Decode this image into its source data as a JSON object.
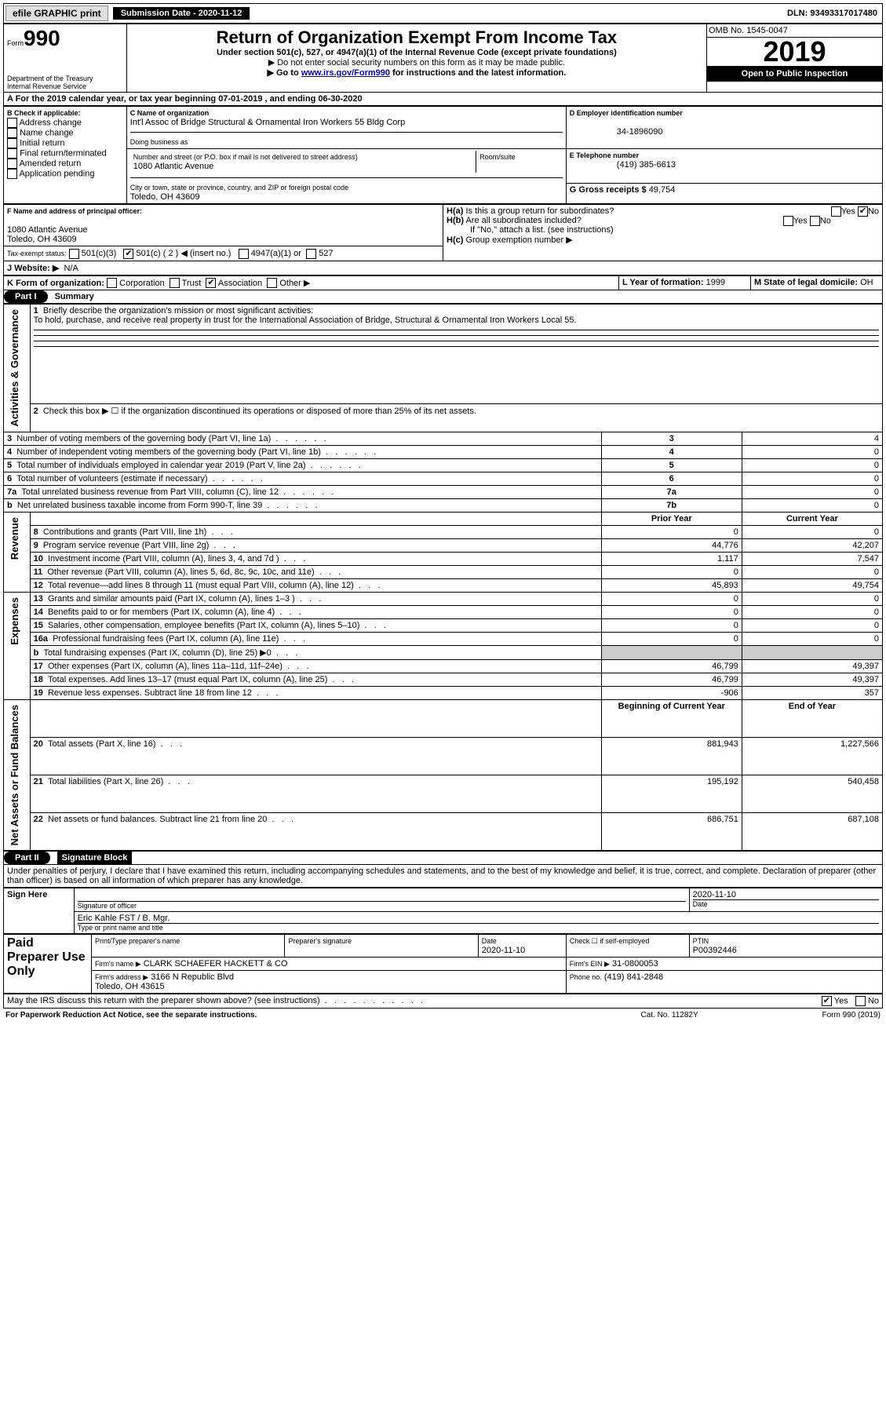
{
  "topbar": {
    "efile": "efile GRAPHIC print",
    "submission": "Submission Date - 2020-11-12",
    "dln": "DLN: 93493317017480"
  },
  "header": {
    "form_label": "Form",
    "form_num": "990",
    "dept": "Department of the Treasury\nInternal Revenue Service",
    "title": "Return of Organization Exempt From Income Tax",
    "sub1": "Under section 501(c), 527, or 4947(a)(1) of the Internal Revenue Code (except private foundations)",
    "sub2": "▶ Do not enter social security numbers on this form as it may be made public.",
    "sub3_pre": "▶ Go to ",
    "sub3_link": "www.irs.gov/Form990",
    "sub3_post": " for instructions and the latest information.",
    "omb": "OMB No. 1545-0047",
    "year": "2019",
    "open": "Open to Public Inspection"
  },
  "lineA": "A For the 2019 calendar year, or tax year beginning 07-01-2019     , and ending 06-30-2020",
  "boxB": {
    "label": "B Check if applicable:",
    "opts": [
      "Address change",
      "Name change",
      "Initial return",
      "Final return/terminated",
      "Amended return",
      "Application pending"
    ]
  },
  "boxC": {
    "label": "C Name of organization",
    "name": "Int'l Assoc of Bridge Structural & Ornamental Iron Workers 55 Bldg Corp",
    "dba_label": "Doing business as",
    "addr_label": "Number and street (or P.O. box if mail is not delivered to street address)",
    "room_label": "Room/suite",
    "addr": "1080 Atlantic Avenue",
    "city_label": "City or town, state or province, country, and ZIP or foreign postal code",
    "city": "Toledo, OH  43609"
  },
  "boxD": {
    "label": "D Employer identification number",
    "val": "34-1896090"
  },
  "boxE": {
    "label": "E Telephone number",
    "val": "(419) 385-6613"
  },
  "boxG": {
    "label": "G Gross receipts $",
    "val": "49,754"
  },
  "boxF": {
    "label": "F  Name and address of principal officer:",
    "addr1": "1080 Atlantic Avenue",
    "addr2": "Toledo, OH  43609"
  },
  "boxH": {
    "ha": "Is this a group return for subordinates?",
    "hb": "Are all subordinates included?",
    "hb_note": "If \"No,\" attach a list. (see instructions)",
    "hc": "Group exemption number ▶"
  },
  "taxExempt": {
    "label": "Tax-exempt status:",
    "opts": [
      "501(c)(3)",
      "501(c) ( 2 ) ◀ (insert no.)",
      "4947(a)(1) or",
      "527"
    ]
  },
  "boxJ": {
    "label": "J    Website: ▶",
    "val": "N/A"
  },
  "boxK": {
    "label": "K Form of organization:",
    "opts": [
      "Corporation",
      "Trust",
      "Association",
      "Other ▶"
    ]
  },
  "boxL": {
    "label": "L Year of formation:",
    "val": "1999"
  },
  "boxM": {
    "label": "M State of legal domicile:",
    "val": "OH"
  },
  "partI": {
    "title": "Part I",
    "heading": "Summary",
    "q1_label": "Briefly describe the organization's mission or most significant activities:",
    "q1_val": "To hold, purchase, and receive real property in trust for the International Association of Bridge, Structural & Ornamental Iron Workers Local 55.",
    "q2_label": "Check this box ▶ ☐  if the organization discontinued its operations or disposed of more than 25% of its net assets.",
    "rows_gov": [
      {
        "n": "3",
        "label": "Number of voting members of the governing body (Part VI, line 1a)",
        "col": "3",
        "val": "4"
      },
      {
        "n": "4",
        "label": "Number of independent voting members of the governing body (Part VI, line 1b)",
        "col": "4",
        "val": "0"
      },
      {
        "n": "5",
        "label": "Total number of individuals employed in calendar year 2019 (Part V, line 2a)",
        "col": "5",
        "val": "0"
      },
      {
        "n": "6",
        "label": "Total number of volunteers (estimate if necessary)",
        "col": "6",
        "val": "0"
      },
      {
        "n": "7a",
        "label": "Total unrelated business revenue from Part VIII, column (C), line 12",
        "col": "7a",
        "val": "0"
      },
      {
        "n": "b",
        "label": "Net unrelated business taxable income from Form 990-T, line 39",
        "col": "7b",
        "val": "0"
      }
    ],
    "col_prior": "Prior Year",
    "col_current": "Current Year",
    "rows_rev": [
      {
        "n": "8",
        "label": "Contributions and grants (Part VIII, line 1h)",
        "p": "0",
        "c": "0"
      },
      {
        "n": "9",
        "label": "Program service revenue (Part VIII, line 2g)",
        "p": "44,776",
        "c": "42,207"
      },
      {
        "n": "10",
        "label": "Investment income (Part VIII, column (A), lines 3, 4, and 7d )",
        "p": "1,117",
        "c": "7,547"
      },
      {
        "n": "11",
        "label": "Other revenue (Part VIII, column (A), lines 5, 6d, 8c, 9c, 10c, and 11e)",
        "p": "0",
        "c": "0"
      },
      {
        "n": "12",
        "label": "Total revenue—add lines 8 through 11 (must equal Part VIII, column (A), line 12)",
        "p": "45,893",
        "c": "49,754"
      }
    ],
    "rows_exp": [
      {
        "n": "13",
        "label": "Grants and similar amounts paid (Part IX, column (A), lines 1–3 )",
        "p": "0",
        "c": "0"
      },
      {
        "n": "14",
        "label": "Benefits paid to or for members (Part IX, column (A), line 4)",
        "p": "0",
        "c": "0"
      },
      {
        "n": "15",
        "label": "Salaries, other compensation, employee benefits (Part IX, column (A), lines 5–10)",
        "p": "0",
        "c": "0"
      },
      {
        "n": "16a",
        "label": "Professional fundraising fees (Part IX, column (A), line 11e)",
        "p": "0",
        "c": "0"
      },
      {
        "n": "b",
        "label": "Total fundraising expenses (Part IX, column (D), line 25) ▶0",
        "p": "",
        "c": "",
        "grey": true
      },
      {
        "n": "17",
        "label": "Other expenses (Part IX, column (A), lines 11a–11d, 11f–24e)",
        "p": "46,799",
        "c": "49,397"
      },
      {
        "n": "18",
        "label": "Total expenses. Add lines 13–17 (must equal Part IX, column (A), line 25)",
        "p": "46,799",
        "c": "49,397"
      },
      {
        "n": "19",
        "label": "Revenue less expenses. Subtract line 18 from line 12",
        "p": "-906",
        "c": "357"
      }
    ],
    "col_begin": "Beginning of Current Year",
    "col_end": "End of Year",
    "rows_net": [
      {
        "n": "20",
        "label": "Total assets (Part X, line 16)",
        "p": "881,943",
        "c": "1,227,566"
      },
      {
        "n": "21",
        "label": "Total liabilities (Part X, line 26)",
        "p": "195,192",
        "c": "540,458"
      },
      {
        "n": "22",
        "label": "Net assets or fund balances. Subtract line 21 from line 20",
        "p": "686,751",
        "c": "687,108"
      }
    ]
  },
  "sideLabels": {
    "gov": "Activities & Governance",
    "rev": "Revenue",
    "exp": "Expenses",
    "net": "Net Assets or\nFund Balances"
  },
  "partII": {
    "title": "Part II",
    "heading": "Signature Block",
    "decl": "Under penalties of perjury, I declare that I have examined this return, including accompanying schedules and statements, and to the best of my knowledge and belief, it is true, correct, and complete. Declaration of preparer (other than officer) is based on all information of which preparer has any knowledge.",
    "sign_here": "Sign Here",
    "sig_label": "Signature of officer",
    "date_label": "Date",
    "date_val": "2020-11-10",
    "name_val": "Eric Kahle  FST / B. Mgr.",
    "name_label": "Type or print name and title",
    "paid": "Paid Preparer Use Only",
    "prep_name_label": "Print/Type preparer's name",
    "prep_sig_label": "Preparer's signature",
    "prep_date_label": "Date",
    "prep_date_val": "2020-11-10",
    "check_self": "Check ☐ if self-employed",
    "ptin_label": "PTIN",
    "ptin_val": "P00392446",
    "firm_name_label": "Firm's name    ▶",
    "firm_name_val": "CLARK SCHAEFER HACKETT & CO",
    "firm_ein_label": "Firm's EIN ▶",
    "firm_ein_val": "31-0800053",
    "firm_addr_label": "Firm's address ▶",
    "firm_addr_val": "3166 N Republic Blvd\nToledo, OH  43615",
    "phone_label": "Phone no.",
    "phone_val": "(419) 841-2848",
    "discuss": "May the IRS discuss this return with the preparer shown above? (see instructions)",
    "yes": "Yes",
    "no": "No"
  },
  "footer": {
    "left": "For Paperwork Reduction Act Notice, see the separate instructions.",
    "mid": "Cat. No. 11282Y",
    "right": "Form 990 (2019)"
  }
}
